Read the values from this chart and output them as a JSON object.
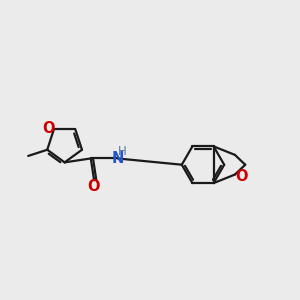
{
  "background_color": "#ebebeb",
  "bond_color": "#1a1a1a",
  "O_color": "#cc0000",
  "N_color": "#2255cc",
  "H_color": "#557799",
  "bond_width": 1.6,
  "figsize": [
    3.0,
    3.0
  ],
  "dpi": 100,
  "xlim": [
    -1.5,
    8.5
  ],
  "ylim": [
    -1.8,
    3.8
  ]
}
